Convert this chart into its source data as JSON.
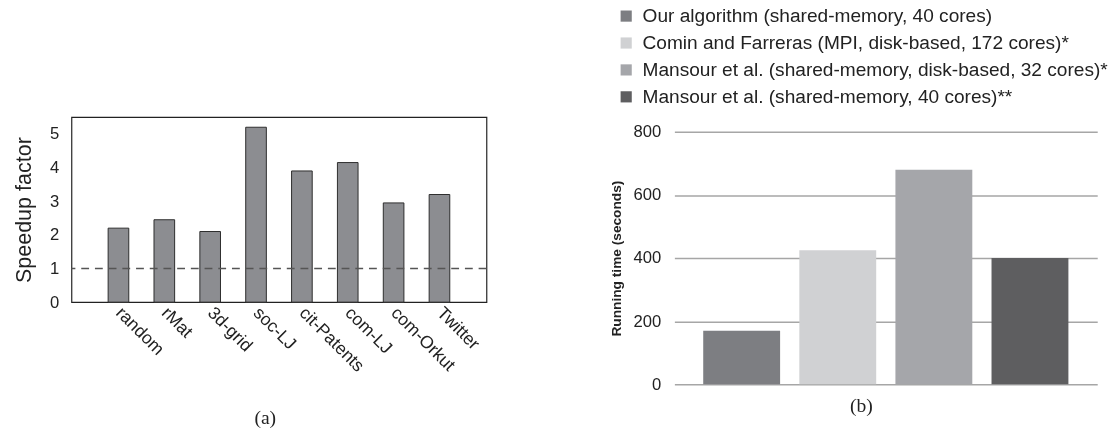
{
  "chart_data": [
    {
      "type": "bar",
      "categories": [
        "random",
        "rMat",
        "3d-grid",
        "soc-LJ",
        "cit-Patents",
        "com-LJ",
        "com-Orkut",
        "Twitter"
      ],
      "values": [
        2.2,
        2.45,
        2.1,
        5.2,
        3.9,
        4.15,
        2.95,
        3.2
      ],
      "color": "#8c8d91",
      "ylabel": "Speedup factor",
      "ylim": [
        0,
        5.5
      ],
      "yticks": [
        0,
        1,
        2,
        3,
        4,
        5
      ],
      "ref_lines": [
        {
          "axis": "y",
          "value": 1,
          "color": "#555555",
          "line_style": "dashed"
        }
      ],
      "annotations": [
        "(a)"
      ]
    },
    {
      "type": "bar",
      "categories": [
        null
      ],
      "series": [
        {
          "name": "Our algorithm (shared-memory, 40 cores)",
          "color": "#7d7e82",
          "values": [
            170
          ]
        },
        {
          "name": "Comin and Farreras (MPI, disk-based, 172 cores)*",
          "color": "#d0d1d3",
          "values": [
            425
          ]
        },
        {
          "name": "Mansour et al. (shared-memory, disk-based, 32 cores)*",
          "color": "#a5a6aa",
          "values": [
            680
          ]
        },
        {
          "name": "Mansour et al. (shared-memory, 40 cores)**",
          "color": "#5e5e60",
          "values": [
            400
          ]
        }
      ],
      "ylabel": "Running time (seconds)",
      "ylim": [
        0,
        800
      ],
      "yticks": [
        0,
        200,
        400,
        600,
        800
      ],
      "grid": "y",
      "legend": "top",
      "tick_labels": "y",
      "annotations": [
        "(b)"
      ]
    }
  ]
}
